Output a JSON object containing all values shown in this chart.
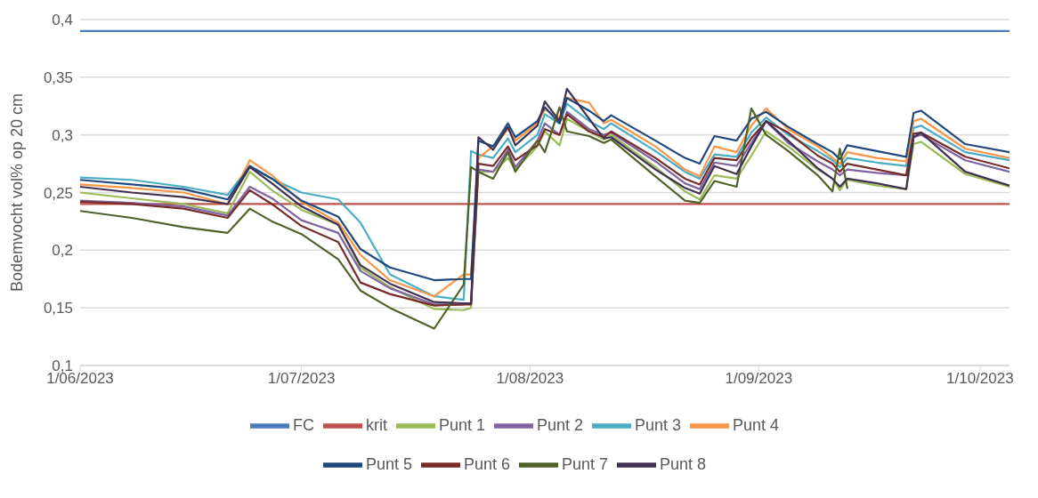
{
  "chart_data": {
    "type": "line",
    "ylabel": "Bodemvocht vol% op 20 cm",
    "x": [
      "2023-06-01",
      "2023-06-08",
      "2023-06-15",
      "2023-06-21",
      "2023-06-24",
      "2023-06-27",
      "2023-07-01",
      "2023-07-06",
      "2023-07-09",
      "2023-07-13",
      "2023-07-19",
      "2023-07-23",
      "2023-07-24",
      "2023-07-25",
      "2023-07-27",
      "2023-07-29",
      "2023-07-30",
      "2023-08-02",
      "2023-08-03",
      "2023-08-05",
      "2023-08-06",
      "2023-08-09",
      "2023-08-11",
      "2023-08-12",
      "2023-08-18",
      "2023-08-22",
      "2023-08-24",
      "2023-08-26",
      "2023-08-29",
      "2023-08-31",
      "2023-09-02",
      "2023-09-05",
      "2023-09-09",
      "2023-09-11",
      "2023-09-12",
      "2023-09-13",
      "2023-09-17",
      "2023-09-21",
      "2023-09-22",
      "2023-09-23",
      "2023-09-29",
      "2023-10-05"
    ],
    "xlim": [
      "2023-06-01",
      "2023-10-05"
    ],
    "xticks": [
      {
        "value": "2023-06-01",
        "label": "1/06/2023"
      },
      {
        "value": "2023-07-01",
        "label": "1/07/2023"
      },
      {
        "value": "2023-08-01",
        "label": "1/08/2023"
      },
      {
        "value": "2023-09-01",
        "label": "1/09/2023"
      },
      {
        "value": "2023-10-01",
        "label": "1/10/2023"
      }
    ],
    "ylim": [
      0.1,
      0.4
    ],
    "yticks": [
      {
        "value": 0.1,
        "label": "0,1"
      },
      {
        "value": 0.15,
        "label": "0,15"
      },
      {
        "value": 0.2,
        "label": "0,2"
      },
      {
        "value": 0.25,
        "label": "0,25"
      },
      {
        "value": 0.3,
        "label": "0,3"
      },
      {
        "value": 0.35,
        "label": "0,35"
      },
      {
        "value": 0.4,
        "label": "0,4"
      }
    ],
    "grid": "y",
    "legend": "bottom",
    "marker": "none",
    "line_style": "solid",
    "series": [
      {
        "name": "FC",
        "color": "#4a7ebb",
        "x": [
          "2023-06-01",
          "2023-10-05"
        ],
        "values": [
          0.39,
          0.39
        ]
      },
      {
        "name": "krit",
        "color": "#c0504d",
        "x": [
          "2023-06-01",
          "2023-10-05"
        ],
        "values": [
          0.24,
          0.24
        ]
      },
      {
        "name": "Punt 1",
        "color": "#9bbb59",
        "values": [
          0.25,
          0.245,
          0.24,
          0.232,
          0.268,
          0.252,
          0.235,
          0.222,
          0.185,
          0.168,
          0.149,
          0.148,
          0.15,
          0.268,
          0.268,
          0.28,
          0.27,
          0.29,
          0.303,
          0.291,
          0.314,
          0.303,
          0.296,
          0.3,
          0.272,
          0.251,
          0.244,
          0.265,
          0.262,
          0.282,
          0.303,
          0.29,
          0.27,
          0.262,
          0.252,
          0.261,
          0.256,
          0.253,
          0.292,
          0.294,
          0.266,
          0.255
        ]
      },
      {
        "name": "Punt 2",
        "color": "#8064a2",
        "values": [
          0.243,
          0.241,
          0.238,
          0.23,
          0.255,
          0.245,
          0.226,
          0.215,
          0.182,
          0.167,
          0.153,
          0.153,
          0.154,
          0.27,
          0.268,
          0.287,
          0.272,
          0.295,
          0.31,
          0.3,
          0.32,
          0.305,
          0.3,
          0.302,
          0.277,
          0.258,
          0.253,
          0.276,
          0.273,
          0.293,
          0.312,
          0.293,
          0.277,
          0.27,
          0.265,
          0.27,
          0.267,
          0.265,
          0.298,
          0.3,
          0.278,
          0.268
        ]
      },
      {
        "name": "Punt 3",
        "color": "#4bacc6",
        "values": [
          0.263,
          0.261,
          0.255,
          0.248,
          0.273,
          0.262,
          0.25,
          0.244,
          0.224,
          0.179,
          0.16,
          0.157,
          0.286,
          0.283,
          0.28,
          0.297,
          0.285,
          0.3,
          0.318,
          0.31,
          0.327,
          0.312,
          0.305,
          0.31,
          0.286,
          0.268,
          0.262,
          0.283,
          0.281,
          0.302,
          0.315,
          0.3,
          0.286,
          0.278,
          0.272,
          0.28,
          0.276,
          0.273,
          0.306,
          0.308,
          0.285,
          0.278
        ]
      },
      {
        "name": "Punt 4",
        "color": "#f79646",
        "values": [
          0.257,
          0.254,
          0.25,
          0.24,
          0.278,
          0.265,
          0.242,
          0.224,
          0.196,
          0.174,
          0.16,
          0.179,
          0.179,
          0.28,
          0.29,
          0.305,
          0.295,
          0.31,
          0.322,
          0.315,
          0.332,
          0.328,
          0.31,
          0.313,
          0.29,
          0.27,
          0.264,
          0.29,
          0.285,
          0.308,
          0.323,
          0.305,
          0.29,
          0.28,
          0.275,
          0.285,
          0.28,
          0.277,
          0.312,
          0.314,
          0.288,
          0.28
        ]
      },
      {
        "name": "Punt 5",
        "color": "#1f497d",
        "values": [
          0.261,
          0.257,
          0.253,
          0.244,
          0.273,
          0.262,
          0.243,
          0.229,
          0.201,
          0.185,
          0.174,
          0.175,
          0.175,
          0.295,
          0.29,
          0.31,
          0.298,
          0.312,
          0.324,
          0.31,
          0.332,
          0.321,
          0.312,
          0.317,
          0.295,
          0.28,
          0.275,
          0.299,
          0.295,
          0.314,
          0.32,
          0.307,
          0.292,
          0.285,
          0.279,
          0.291,
          0.286,
          0.281,
          0.319,
          0.321,
          0.292,
          0.285
        ]
      },
      {
        "name": "Punt 6",
        "color": "#772c2a",
        "values": [
          0.242,
          0.24,
          0.236,
          0.228,
          0.252,
          0.24,
          0.221,
          0.207,
          0.172,
          0.162,
          0.152,
          0.153,
          0.153,
          0.275,
          0.273,
          0.29,
          0.278,
          0.291,
          0.305,
          0.3,
          0.318,
          0.303,
          0.298,
          0.303,
          0.28,
          0.262,
          0.257,
          0.28,
          0.278,
          0.297,
          0.312,
          0.302,
          0.282,
          0.275,
          0.268,
          0.275,
          0.27,
          0.265,
          0.301,
          0.302,
          0.281,
          0.271
        ]
      },
      {
        "name": "Punt 7",
        "color": "#4f6228",
        "values": [
          0.234,
          0.228,
          0.22,
          0.215,
          0.236,
          0.225,
          0.214,
          0.192,
          0.165,
          0.15,
          0.132,
          0.17,
          0.272,
          0.268,
          0.262,
          0.285,
          0.268,
          0.295,
          0.285,
          0.324,
          0.303,
          0.299,
          0.293,
          0.296,
          0.264,
          0.243,
          0.241,
          0.26,
          0.255,
          0.323,
          0.3,
          0.286,
          0.265,
          0.251,
          0.288,
          0.254,
          null,
          null,
          null,
          null,
          null,
          null
        ]
      },
      {
        "name": "Punt 8",
        "color": "#403152",
        "values": [
          0.255,
          0.25,
          0.246,
          0.24,
          0.272,
          0.258,
          0.238,
          0.222,
          0.187,
          0.171,
          0.155,
          0.154,
          0.154,
          0.298,
          0.287,
          0.307,
          0.291,
          0.308,
          0.329,
          0.312,
          0.34,
          0.314,
          0.297,
          0.298,
          0.27,
          0.254,
          0.249,
          0.273,
          0.266,
          0.29,
          0.312,
          0.295,
          0.271,
          0.262,
          0.255,
          0.262,
          0.258,
          0.253,
          0.298,
          0.302,
          0.268,
          0.256
        ]
      }
    ]
  }
}
